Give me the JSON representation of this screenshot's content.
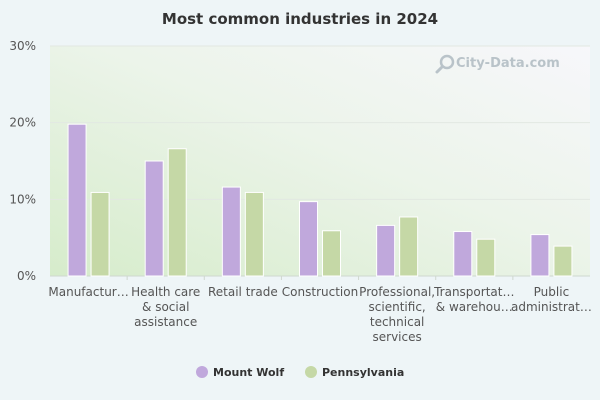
{
  "chart_data": {
    "type": "bar",
    "title": "Most common industries in 2024",
    "xlabel": "",
    "ylabel": "",
    "ylim": [
      0,
      30
    ],
    "yticks": [
      "0%",
      "10%",
      "20%",
      "30%"
    ],
    "ytick_values": [
      0,
      10,
      20,
      30
    ],
    "categories": [
      [
        "Manufactur…"
      ],
      [
        "Health care",
        "& social",
        "assistance"
      ],
      [
        "Retail trade"
      ],
      [
        "Construction"
      ],
      [
        "Professional,",
        "scientific,",
        "technical",
        "services"
      ],
      [
        "Transportat…",
        "& warehou…"
      ],
      [
        "Public",
        "administrat…"
      ]
    ],
    "series": [
      {
        "name": "Mount Wolf",
        "color": "#c0a8dc",
        "values": [
          19.8,
          15.0,
          11.6,
          9.7,
          6.6,
          5.8,
          5.4
        ]
      },
      {
        "name": "Pennsylvania",
        "color": "#c5d8a6",
        "values": [
          10.9,
          16.6,
          10.9,
          5.9,
          7.7,
          4.8,
          3.9
        ]
      }
    ],
    "grid": true,
    "legend_position": "bottom-center"
  },
  "watermark": {
    "text": "City-Data.com",
    "icon": "magnifier-icon"
  }
}
